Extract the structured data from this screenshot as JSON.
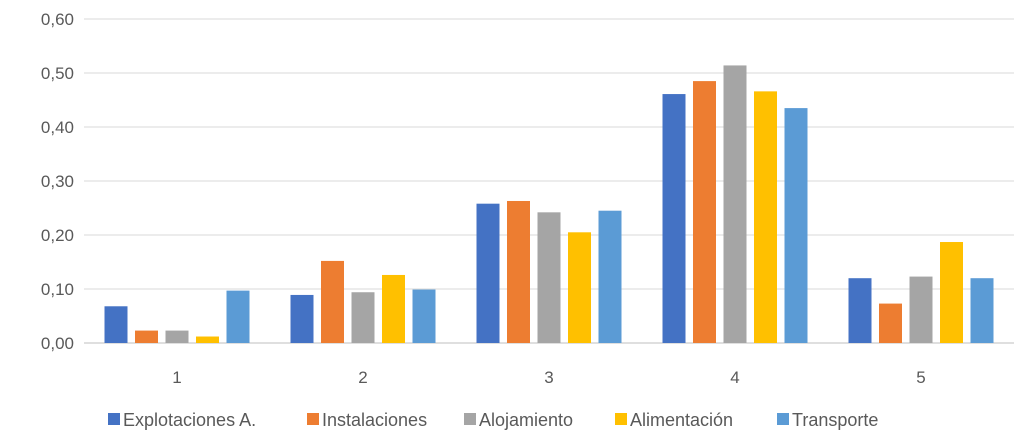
{
  "chart_data": {
    "type": "bar",
    "title": "",
    "xlabel": "",
    "ylabel": "",
    "categories": [
      "1",
      "2",
      "3",
      "4",
      "5"
    ],
    "ylim": [
      0,
      0.6
    ],
    "yticks": [
      "0,00",
      "0,10",
      "0,20",
      "0,30",
      "0,40",
      "0,50",
      "0,60"
    ],
    "grid": true,
    "legend_position": "bottom",
    "series": [
      {
        "name": "Explotaciones A.",
        "color": "#4472C4",
        "values": [
          0.068,
          0.089,
          0.258,
          0.461,
          0.12
        ]
      },
      {
        "name": "Instalaciones",
        "color": "#ED7D31",
        "values": [
          0.023,
          0.152,
          0.263,
          0.485,
          0.073
        ]
      },
      {
        "name": "Alojamiento",
        "color": "#A5A5A5",
        "values": [
          0.023,
          0.094,
          0.242,
          0.514,
          0.123
        ]
      },
      {
        "name": "Alimentación",
        "color": "#FFC000",
        "values": [
          0.012,
          0.126,
          0.205,
          0.466,
          0.187
        ]
      },
      {
        "name": "Transporte",
        "color": "#5B9BD5",
        "values": [
          0.097,
          0.099,
          0.245,
          0.435,
          0.12
        ]
      }
    ]
  }
}
